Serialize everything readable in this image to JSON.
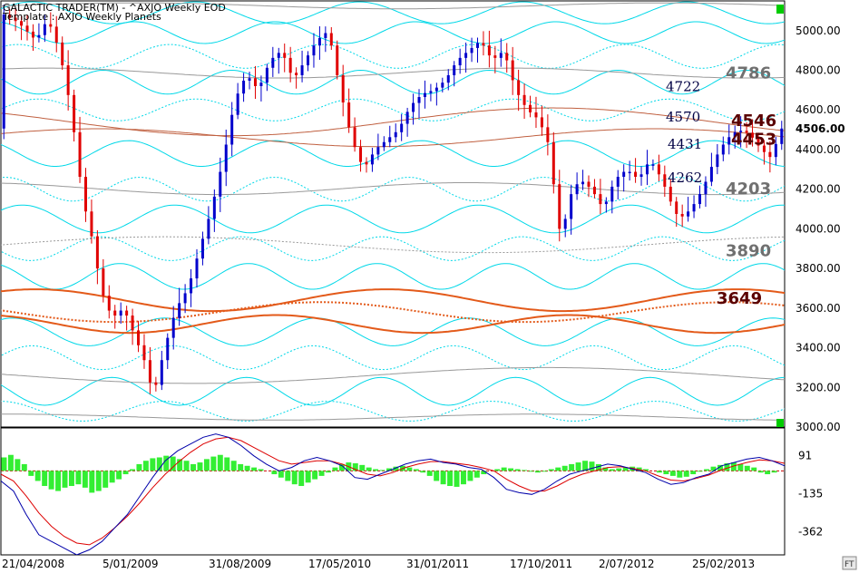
{
  "window": {
    "title": "GALACTIC TRADER(TM) - ^AXJO Weekly EOD",
    "template": "Template : AXJO Weekly Planets"
  },
  "colors": {
    "background": "#ffffff",
    "up_bar": "#0000cc",
    "down_bar": "#e00000",
    "cyan_lines": "#00d8e8",
    "grey_lines": "#999999",
    "orange_lines": "#e35a1a",
    "brown_lines": "#c06040",
    "hist_green": "#33ee33",
    "fast_line": "#0000aa",
    "slow_line": "#dd0000",
    "level_dark_red": "#5a0000",
    "level_grey": "#707070",
    "level_navy": "#000044",
    "corner_marker": "#00cc00"
  },
  "icons": {
    "top_corner": "green-square-icon",
    "bottom_corner": "green-square-icon",
    "logo": "ft-logo-icon"
  },
  "chart_data": [
    {
      "type": "candlestick",
      "title": "GALACTIC TRADER(TM) - ^AXJO Weekly EOD",
      "subtitle": "Template : AXJO Weekly Planets",
      "ylim": [
        3000,
        5150
      ],
      "y_ticks": [
        "5000.00",
        "4800.00",
        "4600.00",
        "4400.00",
        "4200.00",
        "4000.00",
        "3800.00",
        "3600.00",
        "3400.00",
        "3200.00",
        "3000.00"
      ],
      "y_ticks_values": [
        5000,
        4800,
        4600,
        4400,
        4200,
        4000,
        3800,
        3600,
        3400,
        3200,
        3000
      ],
      "last_price_label": "4506.00",
      "last_price": 4506,
      "x_tick_labels": [
        "21/04/2008",
        "5/01/2009",
        "31/08/2009",
        "17/05/2010",
        "31/01/2011",
        "17/10/2011",
        "2/07/2012",
        "25/02/2013"
      ],
      "price_path": [
        [
          0,
          5090
        ],
        [
          3,
          5040
        ],
        [
          6,
          4950
        ],
        [
          8,
          5060
        ],
        [
          10,
          4900
        ],
        [
          12,
          4600
        ],
        [
          14,
          4150
        ],
        [
          16,
          3900
        ],
        [
          17,
          3700
        ],
        [
          19,
          3550
        ],
        [
          21,
          3600
        ],
        [
          23,
          3450
        ],
        [
          25,
          3300
        ],
        [
          26,
          3150
        ],
        [
          28,
          3400
        ],
        [
          30,
          3600
        ],
        [
          32,
          3700
        ],
        [
          34,
          3900
        ],
        [
          36,
          4100
        ],
        [
          38,
          4350
        ],
        [
          40,
          4650
        ],
        [
          42,
          4780
        ],
        [
          44,
          4700
        ],
        [
          46,
          4850
        ],
        [
          48,
          4900
        ],
        [
          50,
          4750
        ],
        [
          52,
          4850
        ],
        [
          54,
          4950
        ],
        [
          56,
          5000
        ],
        [
          58,
          4700
        ],
        [
          60,
          4450
        ],
        [
          62,
          4300
        ],
        [
          64,
          4400
        ],
        [
          66,
          4450
        ],
        [
          68,
          4500
        ],
        [
          70,
          4620
        ],
        [
          72,
          4680
        ],
        [
          74,
          4700
        ],
        [
          76,
          4750
        ],
        [
          78,
          4850
        ],
        [
          80,
          4900
        ],
        [
          82,
          4950
        ],
        [
          84,
          4850
        ],
        [
          86,
          4900
        ],
        [
          88,
          4700
        ],
        [
          90,
          4600
        ],
        [
          92,
          4550
        ],
        [
          94,
          4400
        ],
        [
          95,
          4050
        ],
        [
          96,
          3950
        ],
        [
          97,
          4150
        ],
        [
          99,
          4250
        ],
        [
          101,
          4200
        ],
        [
          103,
          4100
        ],
        [
          105,
          4250
        ],
        [
          107,
          4300
        ],
        [
          109,
          4250
        ],
        [
          111,
          4350
        ],
        [
          113,
          4250
        ],
        [
          115,
          4100
        ],
        [
          116,
          4050
        ],
        [
          118,
          4100
        ],
        [
          120,
          4200
        ],
        [
          122,
          4350
        ],
        [
          124,
          4450
        ],
        [
          126,
          4500
        ],
        [
          128,
          4480
        ],
        [
          130,
          4400
        ],
        [
          132,
          4350
        ],
        [
          133,
          4506
        ]
      ],
      "total_bars": 134,
      "planetary_levels": [
        {
          "label": "4786",
          "value": 4786,
          "style": "grey"
        },
        {
          "label": "4722",
          "value": 4722,
          "style": "navy"
        },
        {
          "label": "4570",
          "value": 4570,
          "style": "navy"
        },
        {
          "label": "4546",
          "value": 4546,
          "style": "dark-red"
        },
        {
          "label": "4453",
          "value": 4453,
          "style": "dark-red"
        },
        {
          "label": "4431",
          "value": 4431,
          "style": "navy"
        },
        {
          "label": "4262",
          "value": 4262,
          "style": "navy"
        },
        {
          "label": "4203",
          "value": 4203,
          "style": "grey"
        },
        {
          "label": "3890",
          "value": 3890,
          "style": "grey"
        },
        {
          "label": "3649",
          "value": 3649,
          "style": "dark-red"
        }
      ],
      "wave_lines": [
        {
          "group": "cyan",
          "base": 5090,
          "amp": 55,
          "period": 28,
          "phase": 0.5,
          "dotted": false
        },
        {
          "group": "cyan",
          "base": 4990,
          "amp": 55,
          "period": 24,
          "phase": 2.0,
          "dotted": false
        },
        {
          "group": "cyan",
          "base": 4870,
          "amp": 60,
          "period": 26,
          "phase": 1.0,
          "dotted": true
        },
        {
          "group": "cyan",
          "base": 4740,
          "amp": 60,
          "period": 22,
          "phase": 3.0,
          "dotted": false
        },
        {
          "group": "cyan",
          "base": 4600,
          "amp": 55,
          "period": 27,
          "phase": 0.2,
          "dotted": true
        },
        {
          "group": "cyan",
          "base": 4380,
          "amp": 65,
          "period": 25,
          "phase": 2.5,
          "dotted": false
        },
        {
          "group": "cyan",
          "base": 4200,
          "amp": 60,
          "period": 23,
          "phase": 1.5,
          "dotted": true
        },
        {
          "group": "cyan",
          "base": 4050,
          "amp": 70,
          "period": 26,
          "phase": 0.8,
          "dotted": false
        },
        {
          "group": "cyan",
          "base": 3900,
          "amp": 60,
          "period": 24,
          "phase": 3.5,
          "dotted": true
        },
        {
          "group": "cyan",
          "base": 3760,
          "amp": 65,
          "period": 22,
          "phase": 2.2,
          "dotted": false
        },
        {
          "group": "cyan",
          "base": 3480,
          "amp": 70,
          "period": 26,
          "phase": 1.2,
          "dotted": false
        },
        {
          "group": "cyan",
          "base": 3350,
          "amp": 60,
          "period": 24,
          "phase": 0.3,
          "dotted": true
        },
        {
          "group": "cyan",
          "base": 3180,
          "amp": 70,
          "period": 23,
          "phase": 2.8,
          "dotted": false
        },
        {
          "group": "cyan",
          "base": 3080,
          "amp": 50,
          "period": 28,
          "phase": 1.7,
          "dotted": true
        },
        {
          "group": "grey",
          "base": 5125,
          "amp": 15,
          "period": 90,
          "phase": 0.0,
          "dotted": false
        },
        {
          "group": "grey",
          "base": 4786,
          "amp": 25,
          "period": 80,
          "phase": 1.0,
          "dotted": false
        },
        {
          "group": "grey",
          "base": 4203,
          "amp": 30,
          "period": 85,
          "phase": 2.0,
          "dotted": false
        },
        {
          "group": "grey",
          "base": 3920,
          "amp": 40,
          "period": 110,
          "phase": 0.0,
          "dotted": true
        },
        {
          "group": "grey",
          "base": 3260,
          "amp": 40,
          "period": 120,
          "phase": 3.0,
          "dotted": false
        },
        {
          "group": "grey",
          "base": 3050,
          "amp": 15,
          "period": 90,
          "phase": 1.5,
          "dotted": false
        },
        {
          "group": "brown",
          "base": 4540,
          "amp": 70,
          "period": 110,
          "phase": 2.5,
          "dotted": false
        },
        {
          "group": "brown",
          "base": 4460,
          "amp": 45,
          "period": 95,
          "phase": 0.5,
          "dotted": false
        },
        {
          "group": "orange",
          "base": 3640,
          "amp": 55,
          "period": 60,
          "phase": 1.0,
          "dotted": false
        },
        {
          "group": "orange",
          "base": 3580,
          "amp": 50,
          "period": 70,
          "phase": 3.0,
          "dotted": true
        },
        {
          "group": "orange",
          "base": 3520,
          "amp": 45,
          "period": 50,
          "phase": 2.0,
          "dotted": false
        }
      ]
    },
    {
      "type": "bar",
      "name": "oscillator",
      "ylim": [
        -500,
        250
      ],
      "y_ticks": [
        "91",
        "-135",
        "-362"
      ],
      "y_ticks_values": [
        91,
        -135,
        -362
      ],
      "zero_line": 0,
      "histogram": [
        80,
        95,
        70,
        40,
        -30,
        -60,
        -90,
        -110,
        -120,
        -100,
        -90,
        -80,
        -100,
        -130,
        -120,
        -100,
        -70,
        -50,
        -20,
        10,
        40,
        60,
        75,
        80,
        90,
        85,
        70,
        60,
        40,
        50,
        70,
        85,
        95,
        80,
        60,
        40,
        30,
        20,
        10,
        0,
        -20,
        -40,
        -60,
        -80,
        -90,
        -70,
        -50,
        -30,
        -10,
        20,
        40,
        50,
        45,
        35,
        20,
        10,
        5,
        15,
        25,
        30,
        20,
        10,
        -10,
        -30,
        -60,
        -80,
        -90,
        -95,
        -80,
        -60,
        -40,
        -20,
        0,
        10,
        20,
        15,
        10,
        5,
        -5,
        -10,
        -5,
        10,
        20,
        30,
        40,
        50,
        60,
        55,
        40,
        20,
        10,
        15,
        20,
        25,
        20,
        10,
        0,
        -10,
        -20,
        -30,
        -40,
        -35,
        -20,
        -5,
        10,
        25,
        35,
        45,
        50,
        40,
        30,
        20,
        -10,
        -20,
        -10,
        0
      ],
      "fast_line": [
        -60,
        -120,
        -260,
        -380,
        -420,
        -460,
        -500,
        -470,
        -420,
        -340,
        -260,
        -150,
        -40,
        60,
        120,
        160,
        200,
        220,
        200,
        150,
        90,
        40,
        0,
        20,
        60,
        80,
        60,
        30,
        -40,
        -50,
        -20,
        10,
        40,
        60,
        70,
        50,
        40,
        20,
        10,
        -40,
        -110,
        -130,
        -140,
        -110,
        -60,
        -20,
        0,
        20,
        40,
        30,
        10,
        -10,
        -50,
        -80,
        -70,
        -40,
        -20,
        30,
        50,
        70,
        80,
        60,
        30
      ],
      "slow_line": [
        -20,
        -60,
        -150,
        -250,
        -330,
        -390,
        -430,
        -440,
        -400,
        -340,
        -270,
        -190,
        -100,
        -20,
        50,
        110,
        160,
        190,
        200,
        180,
        140,
        100,
        60,
        40,
        50,
        60,
        60,
        40,
        10,
        -20,
        -30,
        -10,
        20,
        40,
        55,
        55,
        45,
        35,
        20,
        0,
        -50,
        -90,
        -120,
        -120,
        -90,
        -50,
        -20,
        0,
        20,
        25,
        15,
        0,
        -30,
        -55,
        -60,
        -45,
        -25,
        5,
        30,
        50,
        65,
        60,
        45
      ]
    }
  ]
}
